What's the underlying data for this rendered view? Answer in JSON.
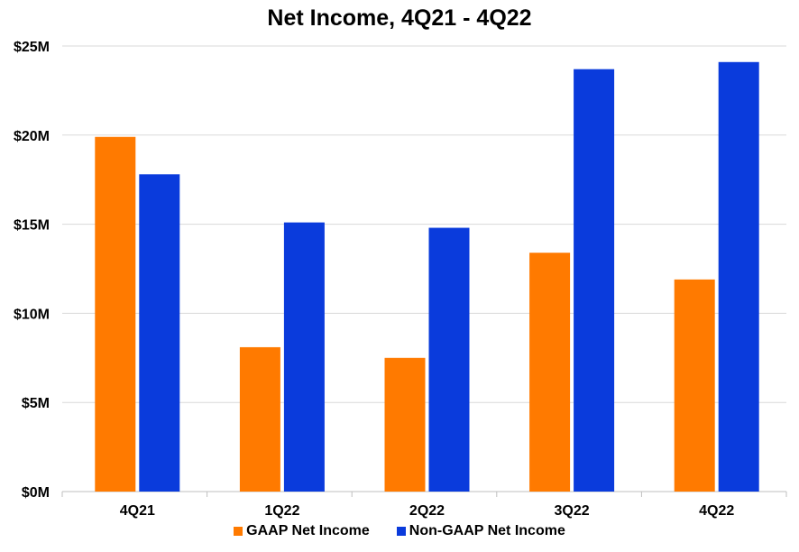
{
  "chart_data": {
    "type": "bar",
    "title": "Net Income, 4Q21 - 4Q22",
    "categories": [
      "4Q21",
      "1Q22",
      "2Q22",
      "3Q22",
      "4Q22"
    ],
    "series": [
      {
        "name": "GAAP Net Income",
        "color": "#ff7a00",
        "values": [
          19.9,
          8.1,
          7.5,
          13.4,
          11.9
        ]
      },
      {
        "name": "Non-GAAP Net Income",
        "color": "#0a3bdc",
        "values": [
          17.8,
          15.1,
          14.8,
          23.7,
          24.1
        ]
      }
    ],
    "ylim": [
      0,
      25
    ],
    "yticks": [
      0,
      5,
      10,
      15,
      20,
      25
    ],
    "ytick_labels": [
      "$0M",
      "$5M",
      "$10M",
      "$15M",
      "$20M",
      "$25M"
    ],
    "xlabel": "",
    "ylabel": "",
    "grid": true,
    "legend_position": "bottom"
  }
}
